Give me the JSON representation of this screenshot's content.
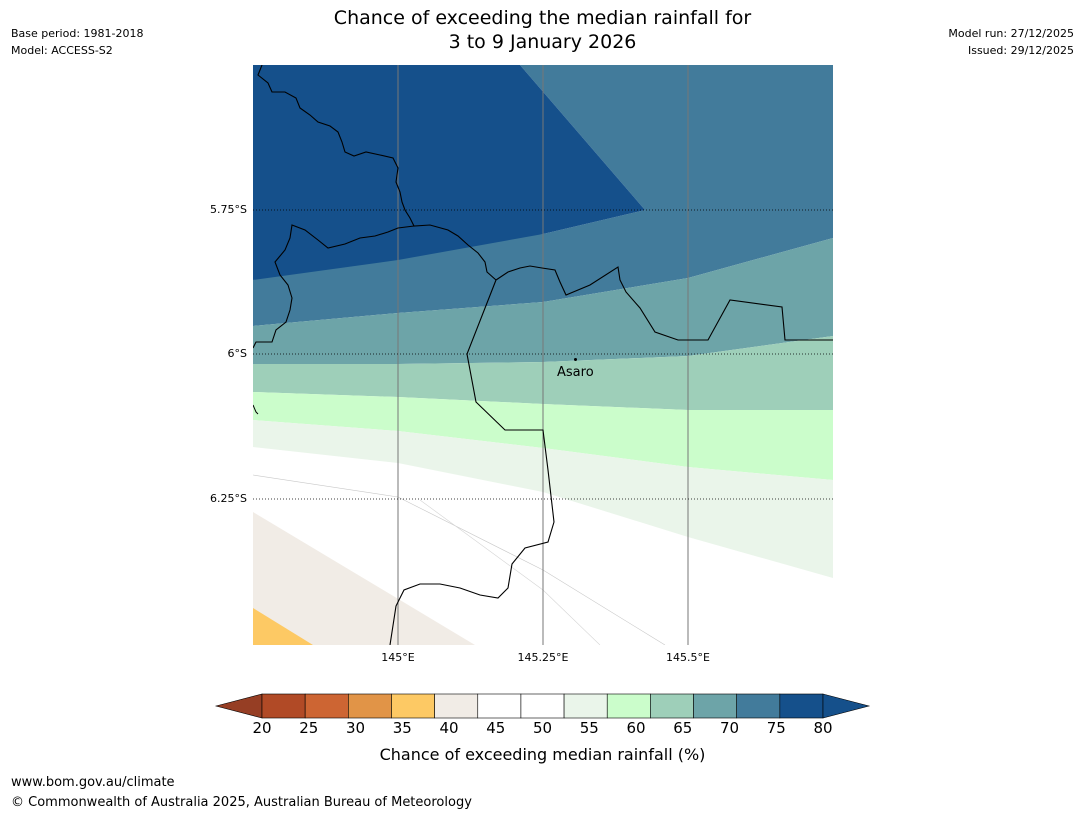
{
  "header": {
    "title_line1": "Chance of exceeding the median rainfall for",
    "title_line2": "3 to 9 January 2026",
    "base_period": "Base period: 1981-2018",
    "model": "Model: ACCESS-S2",
    "model_run": "Model run: 27/12/2025",
    "issued": "Issued: 29/12/2025"
  },
  "map": {
    "place_label": "Asaro",
    "lat_labels": [
      "5.75°S",
      "6°S",
      "6.25°S"
    ],
    "lon_labels": [
      "145°E",
      "145.25°E",
      "145.5°E"
    ]
  },
  "colorbar": {
    "title": "Chance of exceeding median rainfall (%)",
    "ticks": [
      "20",
      "25",
      "30",
      "35",
      "40",
      "45",
      "50",
      "55",
      "60",
      "65",
      "70",
      "75",
      "80"
    ],
    "colors": [
      "#b14a26",
      "#cd6533",
      "#e19447",
      "#fdc964",
      "#f1ece6",
      "#ffffff",
      "#ffffff",
      "#eaf5ea",
      "#cbfdcb",
      "#9ecfb9",
      "#6da4a8",
      "#427b9b",
      "#15508b"
    ],
    "under_color": "#963e24",
    "over_color": "#15508b"
  },
  "footer": {
    "url": "www.bom.gov.au/climate",
    "copyright": "© Commonwealth of Australia 2025, Australian Bureau of Meteorology"
  }
}
